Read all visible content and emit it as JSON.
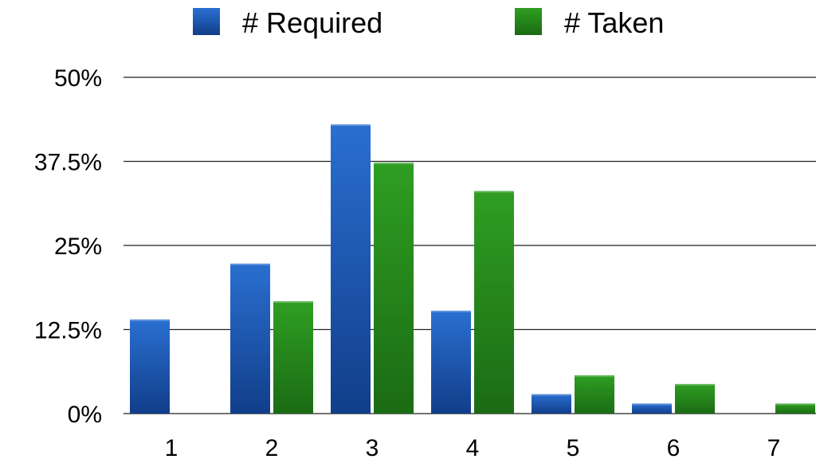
{
  "chart_data": {
    "type": "bar",
    "categories": [
      "1",
      "2",
      "3",
      "4",
      "5",
      "6",
      "7"
    ],
    "series": [
      {
        "name": "# Required",
        "values": [
          14,
          22.3,
          43,
          15.3,
          2.9,
          1.5,
          0
        ]
      },
      {
        "name": "# Taken",
        "values": [
          0,
          16.7,
          37.3,
          33.1,
          5.7,
          4.4,
          1.5
        ]
      }
    ],
    "y_ticks": [
      "0%",
      "12.5%",
      "25%",
      "37.5%",
      "50%"
    ],
    "ylim": [
      0,
      50
    ],
    "y_unit": "%",
    "legend_position": "top",
    "grid": true,
    "colors": {
      "series": [
        {
          "top": "#2a6fd0",
          "bottom": "#113e8a"
        },
        {
          "top": "#2f9e22",
          "bottom": "#1b6b14"
        }
      ],
      "grid": "#222222"
    }
  }
}
